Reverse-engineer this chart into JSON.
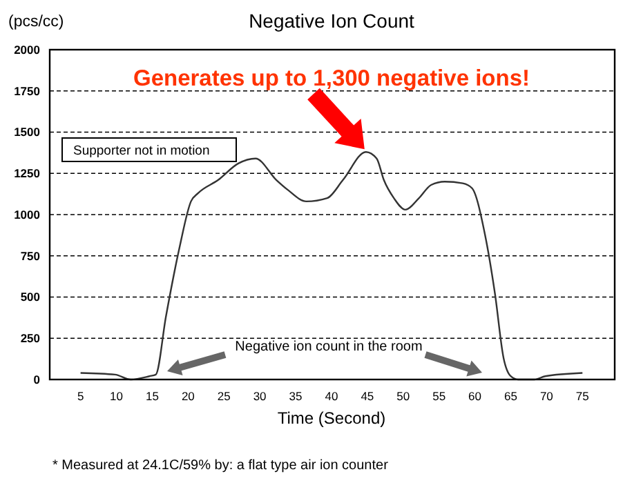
{
  "chart_data": {
    "type": "line",
    "title": "Negative Ion Count",
    "xlabel": "Time (Second)",
    "ylabel": "(pcs/cc)",
    "x": [
      5,
      9.8,
      12,
      14.6,
      15.5,
      16.9,
      18.8,
      20.4,
      21.4,
      24.2,
      27,
      29.4,
      32.3,
      33.9,
      36.5,
      39.4,
      41.6,
      44.8,
      46.3,
      47.3,
      48.7,
      50.3,
      52.2,
      53.9,
      55.8,
      58.3,
      59.6,
      61.4,
      62.8,
      64,
      65,
      66,
      68.3,
      69.8,
      75
    ],
    "series": [
      {
        "color": "#333333",
        "values": [
          40,
          30,
          0,
          20,
          30,
          380,
          800,
          1080,
          1130,
          1210,
          1310,
          1340,
          1210,
          1150,
          1080,
          1100,
          1210,
          1380,
          1340,
          1210,
          1100,
          1030,
          1100,
          1180,
          1200,
          1190,
          1160,
          880,
          520,
          130,
          20,
          0,
          0,
          20,
          40
        ]
      }
    ],
    "xlim": [
      0.7,
      79.5
    ],
    "xticks": [
      5,
      10,
      15,
      20,
      25,
      30,
      35,
      40,
      45,
      50,
      55,
      60,
      65,
      70,
      75
    ],
    "ylim": [
      0,
      2000
    ],
    "yticks": [
      0,
      250,
      500,
      750,
      1000,
      1250,
      1500,
      1750,
      2000
    ],
    "grid": "y",
    "marker": "none",
    "line_style": "solid",
    "annotations": [
      {
        "text": "Generates up to 1,300 negative ions!",
        "x": 44.8,
        "y": 1380
      },
      "Supporter not in motion",
      "Negative ion count in the room",
      "* Measured at 24.1C/59% by: a flat type air ion counter"
    ]
  }
}
